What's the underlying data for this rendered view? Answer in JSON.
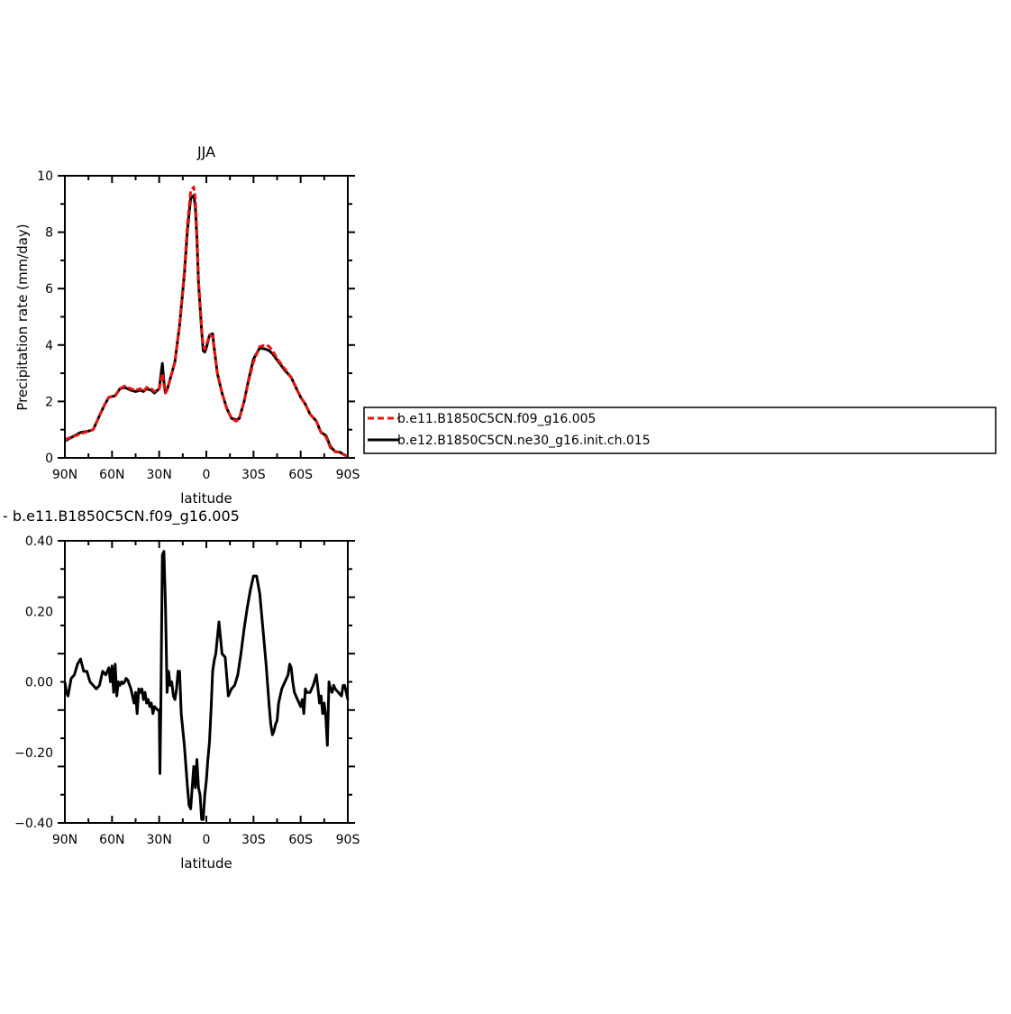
{
  "colors": {
    "model1": "#e8140c",
    "model2": "#000000"
  },
  "chart_data": [
    {
      "type": "line",
      "title": "JJA",
      "xlabel": "latitude",
      "ylabel": "Precipitation rate (mm/day)",
      "xlim": [
        90,
        -90
      ],
      "ylim": [
        0,
        10
      ],
      "xticks": [
        90,
        60,
        30,
        0,
        -30,
        -60,
        -90
      ],
      "xtick_labels": [
        "90N",
        "60N",
        "30N",
        "0",
        "30S",
        "60S",
        "90S"
      ],
      "yticks": [
        0,
        2,
        4,
        6,
        8,
        10
      ],
      "ytick_labels": [
        "0",
        "2",
        "4",
        "6",
        "8",
        "10"
      ],
      "legend": "right",
      "series": [
        {
          "name": "b.e11.B1850C5CN.f09_g16.005",
          "color": "#e8140c",
          "style": "dashed",
          "x": [
            90,
            85,
            80,
            75,
            72,
            68,
            65,
            62,
            58,
            55,
            52,
            48,
            45,
            42,
            40,
            38,
            35,
            33,
            30,
            28,
            27,
            26,
            25,
            23,
            20,
            17,
            14,
            12,
            10,
            8,
            7,
            6,
            5,
            3,
            2,
            1,
            0,
            -2,
            -4,
            -5,
            -7,
            -10,
            -13,
            -16,
            -19,
            -21,
            -24,
            -27,
            -30,
            -34,
            -38,
            -40,
            -42,
            -46,
            -50,
            -54,
            -57,
            -60,
            -63,
            -66,
            -70,
            -73,
            -76,
            -79,
            -82,
            -85,
            -88,
            -90
          ],
          "y": [
            0.65,
            0.75,
            0.85,
            0.95,
            1.0,
            1.5,
            1.85,
            2.15,
            2.2,
            2.45,
            2.55,
            2.45,
            2.4,
            2.45,
            2.35,
            2.5,
            2.45,
            2.35,
            2.45,
            3.0,
            2.6,
            2.3,
            2.4,
            2.8,
            3.4,
            4.7,
            6.6,
            8.3,
            9.45,
            9.6,
            9.2,
            8.0,
            6.3,
            4.6,
            3.95,
            3.85,
            4.0,
            4.35,
            4.3,
            3.85,
            3.0,
            2.3,
            1.75,
            1.4,
            1.3,
            1.4,
            2.0,
            2.75,
            3.4,
            3.95,
            4.0,
            3.95,
            3.8,
            3.45,
            3.15,
            2.85,
            2.5,
            2.15,
            1.9,
            1.55,
            1.3,
            0.9,
            0.75,
            0.35,
            0.22,
            0.2,
            0.1,
            0.05
          ]
        },
        {
          "name": "b.e12.B1850C5CN.ne30_g16.init.ch.015",
          "color": "#000000",
          "style": "solid",
          "x": [
            90,
            85,
            80,
            75,
            72,
            68,
            65,
            62,
            58,
            55,
            52,
            48,
            45,
            42,
            40,
            38,
            35,
            33,
            30,
            28,
            27,
            26,
            25,
            23,
            20,
            17,
            14,
            12,
            10,
            8,
            7,
            6,
            5,
            3,
            2,
            1,
            0,
            -2,
            -4,
            -5,
            -7,
            -10,
            -13,
            -16,
            -19,
            -21,
            -24,
            -27,
            -30,
            -34,
            -38,
            -40,
            -42,
            -46,
            -50,
            -54,
            -57,
            -60,
            -63,
            -66,
            -70,
            -73,
            -76,
            -79,
            -82,
            -85,
            -88,
            -90
          ],
          "y": [
            0.6,
            0.75,
            0.9,
            0.95,
            1.0,
            1.5,
            1.85,
            2.15,
            2.2,
            2.45,
            2.5,
            2.4,
            2.35,
            2.4,
            2.35,
            2.45,
            2.4,
            2.3,
            2.45,
            3.35,
            2.7,
            2.3,
            2.4,
            2.8,
            3.4,
            4.7,
            6.5,
            8.1,
            9.2,
            9.3,
            8.9,
            7.8,
            6.2,
            4.5,
            3.8,
            3.75,
            3.9,
            4.35,
            4.4,
            3.9,
            3.0,
            2.3,
            1.75,
            1.4,
            1.35,
            1.4,
            2.0,
            2.8,
            3.5,
            3.9,
            3.85,
            3.8,
            3.7,
            3.4,
            3.1,
            2.85,
            2.5,
            2.15,
            1.9,
            1.55,
            1.3,
            0.9,
            0.8,
            0.4,
            0.22,
            0.2,
            0.1,
            0.05
          ]
        }
      ]
    },
    {
      "type": "line",
      "title": "- b.e11.B1850C5CN.f09_g16.005",
      "xlabel": "latitude",
      "ylabel": "",
      "xlim": [
        90,
        -90
      ],
      "ylim": [
        -0.4,
        0.4
      ],
      "xticks": [
        90,
        60,
        30,
        0,
        -30,
        -60,
        -90
      ],
      "xtick_labels": [
        "90N",
        "60N",
        "30N",
        "0",
        "30S",
        "60S",
        "90S"
      ],
      "yticks": [
        0.4,
        0.2,
        0,
        -0.2,
        -0.4
      ],
      "ytick_labels": [
        "0.40",
        "0.20",
        "0.00",
        "−0.20",
        "−0.40"
      ],
      "series": [
        {
          "color": "#000000",
          "style": "solid",
          "x": [
            90,
            89,
            88,
            86,
            84,
            82,
            80,
            78,
            76,
            74,
            72,
            70,
            68,
            66,
            64,
            62,
            61,
            60,
            59,
            58,
            57,
            56,
            55,
            54,
            53,
            52,
            51,
            50,
            48,
            46,
            45,
            44,
            43,
            42,
            41,
            40,
            39,
            38,
            37,
            36,
            35,
            34,
            33,
            31,
            30,
            29.5,
            29,
            28,
            27,
            26,
            25.5,
            25,
            24,
            23,
            22,
            21,
            20,
            19,
            18,
            17,
            16,
            14,
            12,
            11,
            10,
            9,
            8,
            7,
            6,
            5,
            4,
            3,
            2,
            1,
            0,
            -1,
            -2,
            -3,
            -4,
            -5,
            -6,
            -8,
            -10,
            -12,
            -14,
            -16,
            -18,
            -20,
            -22,
            -24,
            -26,
            -28,
            -30,
            -32,
            -34,
            -36,
            -38,
            -40,
            -41,
            -42,
            -43,
            -44,
            -45,
            -46,
            -48,
            -50,
            -52,
            -53,
            -54,
            -55,
            -56,
            -58,
            -60,
            -61,
            -62,
            -63,
            -64,
            -66,
            -68,
            -70,
            -71,
            -72,
            -73,
            -74,
            -75,
            -76,
            -77,
            -78,
            -79,
            -80,
            -81,
            -82,
            -84,
            -86,
            -87,
            -88,
            -89,
            -90
          ],
          "y": [
            0.0,
            -0.03,
            -0.04,
            0.01,
            0.02,
            0.05,
            0.065,
            0.03,
            0.03,
            0.0,
            -0.01,
            -0.02,
            -0.01,
            0.03,
            0.02,
            0.04,
            0.0,
            0.045,
            -0.03,
            0.05,
            -0.04,
            0.0,
            -0.01,
            0.0,
            -0.005,
            0.0,
            0.01,
            0.005,
            -0.02,
            -0.06,
            -0.03,
            -0.09,
            -0.02,
            -0.03,
            -0.02,
            -0.05,
            -0.03,
            -0.06,
            -0.05,
            -0.07,
            -0.06,
            -0.09,
            -0.07,
            -0.08,
            -0.08,
            -0.26,
            -0.09,
            0.36,
            0.37,
            0.22,
            0.1,
            -0.03,
            0.03,
            -0.01,
            0.0,
            -0.04,
            -0.05,
            -0.02,
            0.03,
            0.03,
            -0.09,
            -0.18,
            -0.3,
            -0.35,
            -0.36,
            -0.3,
            -0.24,
            -0.3,
            -0.22,
            -0.3,
            -0.32,
            -0.39,
            -0.39,
            -0.32,
            -0.28,
            -0.22,
            -0.17,
            -0.08,
            0.03,
            0.06,
            0.08,
            0.17,
            0.08,
            0.07,
            -0.04,
            -0.02,
            -0.01,
            0.02,
            0.08,
            0.15,
            0.21,
            0.26,
            0.3,
            0.3,
            0.25,
            0.15,
            0.05,
            -0.07,
            -0.12,
            -0.15,
            -0.14,
            -0.12,
            -0.11,
            -0.06,
            -0.02,
            0.0,
            0.02,
            0.05,
            0.04,
            0.0,
            -0.03,
            -0.05,
            -0.07,
            -0.05,
            -0.09,
            -0.02,
            -0.03,
            -0.03,
            -0.01,
            0.02,
            -0.02,
            -0.06,
            -0.04,
            -0.09,
            -0.06,
            -0.1,
            -0.18,
            0.0,
            -0.02,
            -0.03,
            -0.01,
            -0.02,
            -0.03,
            -0.04,
            -0.01,
            -0.01,
            -0.03,
            -0.05
          ]
        }
      ]
    }
  ]
}
